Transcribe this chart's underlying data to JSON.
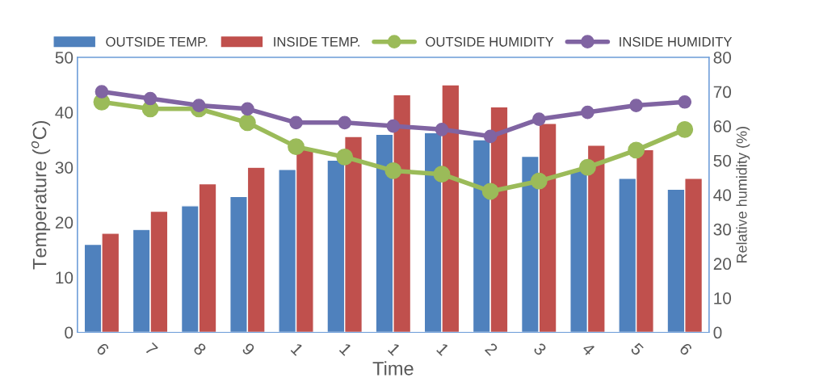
{
  "chart_data": {
    "type": "bar",
    "xlabel": "Time",
    "ylabel": "Temperature ($^{o}$C)",
    "y2label": "Relative humidity (%)",
    "categories": [
      "6",
      "7",
      "8",
      "9",
      "1",
      "1",
      "1",
      "1",
      "2",
      "3",
      "4",
      "5",
      "6"
    ],
    "series": [
      {
        "name": "OUTSIDE TEMP.",
        "color": "#4f81bd",
        "values": [
          16,
          18.7,
          23,
          24.7,
          29.6,
          31.3,
          36,
          36.3,
          35,
          32,
          29.5,
          28,
          26
        ]
      },
      {
        "name": "INSIDE TEMP.",
        "color": "#c0504d",
        "values": [
          18,
          22,
          27,
          30,
          33.2,
          35.6,
          43.2,
          45,
          41,
          38,
          34,
          33.2,
          28
        ]
      },
      {
        "name": "OUTSIDE HUMIDITY",
        "type": "line",
        "axis": "y2",
        "color": "#9bbb59",
        "values": [
          67,
          65,
          65,
          61,
          54,
          51,
          47,
          46,
          41,
          44,
          48,
          53,
          59
        ]
      },
      {
        "name": "INSIDE HUMIDITY",
        "type": "line",
        "axis": "y2",
        "color": "#8064a2",
        "values": [
          70,
          68,
          66,
          65,
          61,
          61,
          60,
          59,
          57,
          62,
          64,
          66,
          67
        ]
      }
    ],
    "ylim": [
      0,
      50
    ],
    "yticks": [
      0,
      10,
      20,
      30,
      40,
      50
    ],
    "y2lim": [
      0,
      80
    ],
    "y2ticks": [
      0,
      10,
      20,
      30,
      40,
      50,
      60,
      70,
      80
    ],
    "marker": "circle",
    "line_style": "solid",
    "grid": false,
    "legend": "top"
  }
}
